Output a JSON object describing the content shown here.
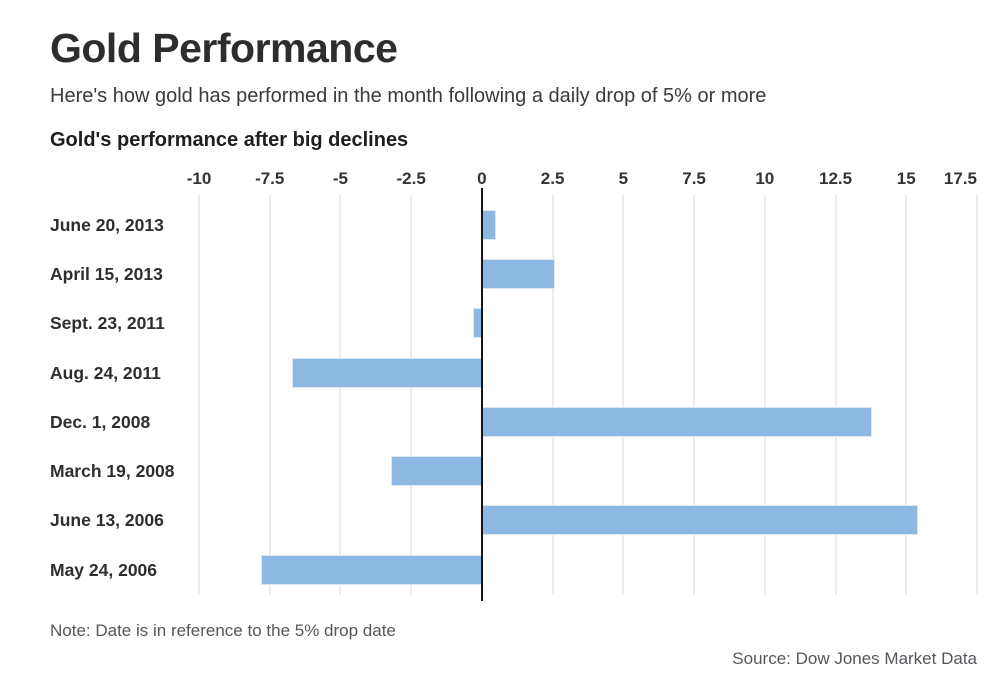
{
  "page": {
    "title": "Gold Performance",
    "subtitle": "Here's how gold has performed in the month following a daily drop of 5% or more",
    "note": "Note: Date is in reference to the 5% drop date",
    "source": "Source: Dow Jones Market Data"
  },
  "chart_data": {
    "type": "bar",
    "orientation": "horizontal",
    "title": "Gold's performance after big declines",
    "categories": [
      "June 20, 2013",
      "April 15, 2013",
      "Sept. 23, 2011",
      "Aug. 24, 2011",
      "Dec. 1, 2008",
      "March 19, 2008",
      "June 13, 2006",
      "May 24, 2006"
    ],
    "values": [
      0.5,
      2.6,
      -0.3,
      -6.7,
      13.8,
      -3.2,
      15.4,
      -7.8
    ],
    "xlim": [
      -10,
      17.5
    ],
    "xticks": [
      -10,
      -7.5,
      -5,
      -2.5,
      0,
      2.5,
      5,
      7.5,
      10,
      12.5,
      15,
      17.5
    ],
    "xlabel": "",
    "ylabel": "",
    "grid": true,
    "legend": false,
    "colors": {
      "bar_fill": "#8cb8e1",
      "bar_border": "#dce9f5",
      "gridline": "#ececec",
      "zero_line": "#161616"
    }
  }
}
